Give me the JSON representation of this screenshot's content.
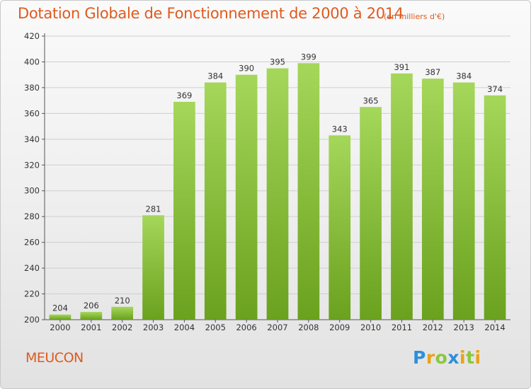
{
  "header": {
    "title": "Dotation Globale de Fonctionnement de 2000 à 2014",
    "subtitle": "(en milliers d'€)"
  },
  "footer": {
    "place": "MEUCON",
    "logo": "Proxiti"
  },
  "colors": {
    "title": "#e05a1e",
    "bar_light": "#a5d75a",
    "bar_dark": "#6aa11e",
    "logo_p": "#2f8fd8",
    "logo_r": "#e8a21a",
    "logo_o": "#8cc63f",
    "logo_x": "#2f8fd8",
    "logo_i": "#e8a21a",
    "logo_t": "#8cc63f"
  },
  "chart_data": {
    "type": "bar",
    "categories": [
      "2000",
      "2001",
      "2002",
      "2003",
      "2004",
      "2005",
      "2006",
      "2007",
      "2008",
      "2009",
      "2010",
      "2011",
      "2012",
      "2013",
      "2014"
    ],
    "values": [
      204,
      206,
      210,
      281,
      369,
      384,
      390,
      395,
      399,
      343,
      365,
      391,
      387,
      384,
      374
    ],
    "ylim": [
      200,
      420
    ],
    "yticks": [
      200,
      220,
      240,
      260,
      280,
      300,
      320,
      340,
      360,
      380,
      400,
      420
    ],
    "grid": true,
    "title": "Dotation Globale de Fonctionnement de 2000 à 2014",
    "subtitle": "(en milliers d'€)",
    "xlabel": "",
    "ylabel": ""
  }
}
